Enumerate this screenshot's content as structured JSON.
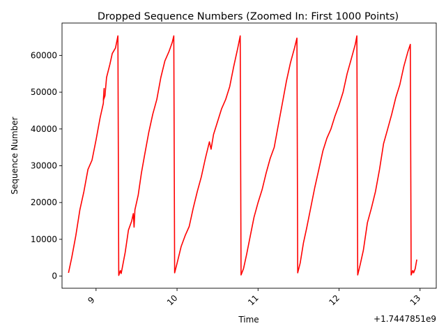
{
  "chart_data": {
    "type": "line",
    "title": "Dropped Sequence Numbers (Zoomed In: First 1000 Points)",
    "xlabel": "Time",
    "ylabel": "Sequence Number",
    "x_offset_label": "+1.7447851e9",
    "xlim": [
      8.58,
      13.2
    ],
    "ylim": [
      -3300,
      68800
    ],
    "x_ticks": [
      9,
      10,
      11,
      12,
      13
    ],
    "y_ticks": [
      0,
      10000,
      20000,
      30000,
      40000,
      50000,
      60000
    ],
    "grid": false,
    "line_color": "#ff0000",
    "series": [
      {
        "points": [
          [
            8.66,
            900
          ],
          [
            8.7,
            5000
          ],
          [
            8.75,
            11000
          ],
          [
            8.8,
            18000
          ],
          [
            8.85,
            23000
          ],
          [
            8.9,
            29000
          ],
          [
            8.95,
            31500
          ],
          [
            9.0,
            37000
          ],
          [
            9.05,
            43000
          ],
          [
            9.09,
            47000
          ],
          [
            9.1,
            51000
          ],
          [
            9.09,
            47800
          ],
          [
            9.11,
            49000
          ],
          [
            9.13,
            54000
          ],
          [
            9.17,
            57500
          ],
          [
            9.2,
            60500
          ],
          [
            9.24,
            62000
          ],
          [
            9.27,
            65300
          ],
          [
            9.28,
            200
          ],
          [
            9.3,
            1500
          ],
          [
            9.31,
            700
          ],
          [
            9.36,
            6500
          ],
          [
            9.4,
            12500
          ],
          [
            9.44,
            15000
          ],
          [
            9.46,
            17000
          ],
          [
            9.47,
            13300
          ],
          [
            9.48,
            18000
          ],
          [
            9.52,
            22000
          ],
          [
            9.56,
            28000
          ],
          [
            9.6,
            33000
          ],
          [
            9.65,
            39000
          ],
          [
            9.7,
            44000
          ],
          [
            9.75,
            48000
          ],
          [
            9.8,
            54000
          ],
          [
            9.85,
            58500
          ],
          [
            9.9,
            61000
          ],
          [
            9.94,
            63500
          ],
          [
            9.96,
            65300
          ],
          [
            9.97,
            900
          ],
          [
            10.0,
            3500
          ],
          [
            10.05,
            8000
          ],
          [
            10.1,
            11000
          ],
          [
            10.15,
            13500
          ],
          [
            10.2,
            18500
          ],
          [
            10.25,
            23000
          ],
          [
            10.3,
            27000
          ],
          [
            10.35,
            32000
          ],
          [
            10.4,
            36500
          ],
          [
            10.42,
            34500
          ],
          [
            10.45,
            38500
          ],
          [
            10.5,
            42000
          ],
          [
            10.55,
            45500
          ],
          [
            10.6,
            48000
          ],
          [
            10.65,
            51500
          ],
          [
            10.7,
            57000
          ],
          [
            10.75,
            62000
          ],
          [
            10.78,
            65300
          ],
          [
            10.79,
            300
          ],
          [
            10.82,
            2000
          ],
          [
            10.86,
            6000
          ],
          [
            10.9,
            10500
          ],
          [
            10.95,
            16000
          ],
          [
            11.0,
            20000
          ],
          [
            11.05,
            23500
          ],
          [
            11.1,
            28000
          ],
          [
            11.15,
            32000
          ],
          [
            11.2,
            35000
          ],
          [
            11.25,
            41000
          ],
          [
            11.3,
            47000
          ],
          [
            11.35,
            53000
          ],
          [
            11.4,
            58000
          ],
          [
            11.45,
            62000
          ],
          [
            11.48,
            64700
          ],
          [
            11.49,
            900
          ],
          [
            11.52,
            3500
          ],
          [
            11.56,
            9000
          ],
          [
            11.6,
            13000
          ],
          [
            11.65,
            18500
          ],
          [
            11.7,
            24000
          ],
          [
            11.75,
            29000
          ],
          [
            11.8,
            34000
          ],
          [
            11.85,
            37500
          ],
          [
            11.9,
            40000
          ],
          [
            11.95,
            43500
          ],
          [
            12.0,
            46500
          ],
          [
            12.05,
            50000
          ],
          [
            12.1,
            55000
          ],
          [
            12.15,
            59000
          ],
          [
            12.2,
            63000
          ],
          [
            12.22,
            65300
          ],
          [
            12.23,
            300
          ],
          [
            12.26,
            3000
          ],
          [
            12.3,
            7000
          ],
          [
            12.35,
            14500
          ],
          [
            12.4,
            18500
          ],
          [
            12.45,
            23000
          ],
          [
            12.5,
            29000
          ],
          [
            12.55,
            36000
          ],
          [
            12.6,
            40000
          ],
          [
            12.65,
            44000
          ],
          [
            12.7,
            48500
          ],
          [
            12.75,
            52000
          ],
          [
            12.8,
            57000
          ],
          [
            12.85,
            61000
          ],
          [
            12.88,
            63000
          ],
          [
            12.89,
            300
          ],
          [
            12.91,
            1500
          ],
          [
            12.92,
            900
          ],
          [
            12.94,
            2000
          ],
          [
            12.96,
            4500
          ]
        ]
      }
    ]
  }
}
